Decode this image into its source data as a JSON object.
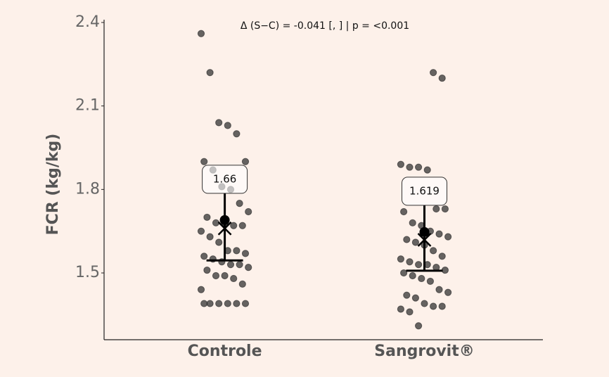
{
  "chart_data": {
    "type": "strip",
    "annotation": "Δ (S−C) = -0.041 [, ] | p = <0.001",
    "y_label": "FCR (kg/kg)",
    "categories": [
      "Controle",
      "Sangrovit®"
    ],
    "ylim": [
      1.26,
      2.41
    ],
    "yticks": [
      1.5,
      1.8,
      2.1,
      2.4
    ],
    "series": [
      {
        "color": "#333333",
        "values": [
          2.36,
          2.22,
          2.04,
          2.03,
          2.0,
          1.9,
          1.9,
          1.87,
          1.81,
          1.8,
          1.75,
          1.72,
          1.7,
          1.68,
          1.68,
          1.67,
          1.67,
          1.65,
          1.63,
          1.61,
          1.58,
          1.58,
          1.57,
          1.56,
          1.55,
          1.54,
          1.53,
          1.53,
          1.52,
          1.51,
          1.49,
          1.49,
          1.48,
          1.46,
          1.44,
          1.39,
          1.39,
          1.39,
          1.39,
          1.39,
          1.39
        ],
        "summary": {
          "dot": 1.69,
          "cross": 1.66,
          "line": 1.545,
          "whisker": [
            1.545,
            1.786
          ],
          "label": 1.66
        }
      },
      {
        "color": "#333333",
        "values": [
          2.22,
          2.2,
          1.89,
          1.88,
          1.88,
          1.87,
          1.73,
          1.73,
          1.72,
          1.68,
          1.67,
          1.65,
          1.64,
          1.63,
          1.62,
          1.61,
          1.6,
          1.58,
          1.56,
          1.55,
          1.54,
          1.53,
          1.53,
          1.52,
          1.51,
          1.5,
          1.49,
          1.48,
          1.47,
          1.44,
          1.43,
          1.42,
          1.41,
          1.39,
          1.38,
          1.38,
          1.37,
          1.36,
          1.31
        ],
        "summary": {
          "dot": 1.647,
          "cross": 1.619,
          "line": 1.508,
          "whisker": [
            1.508,
            1.743
          ],
          "label": 1.619
        }
      }
    ]
  }
}
